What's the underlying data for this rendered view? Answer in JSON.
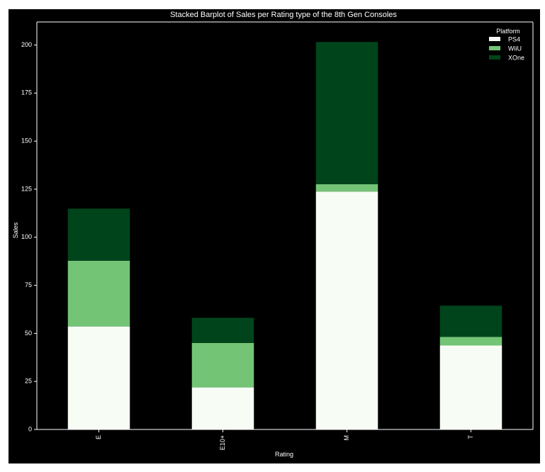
{
  "chart_data": {
    "type": "bar",
    "stacked": true,
    "title": "Stacked Barplot of Sales per Rating type of the 8th Gen Consoles",
    "xlabel": "Rating",
    "ylabel": "Sales",
    "ylim": [
      0,
      212
    ],
    "yticks": [
      0,
      25,
      50,
      75,
      100,
      125,
      150,
      175,
      200
    ],
    "categories": [
      "E",
      "E10+",
      "M",
      "T"
    ],
    "series": [
      {
        "name": "PS4",
        "color": "#f7fcf5",
        "values": [
          53.6,
          21.9,
          123.8,
          43.7
        ]
      },
      {
        "name": "WiiU",
        "color": "#74c476",
        "values": [
          34.2,
          23.1,
          3.8,
          4.5
        ]
      },
      {
        "name": "XOne",
        "color": "#00441b",
        "values": [
          27.1,
          13.1,
          74.0,
          16.2
        ]
      }
    ],
    "legend": {
      "title": "Platform",
      "position": "top-right"
    },
    "grid": false,
    "background": "#000000"
  }
}
